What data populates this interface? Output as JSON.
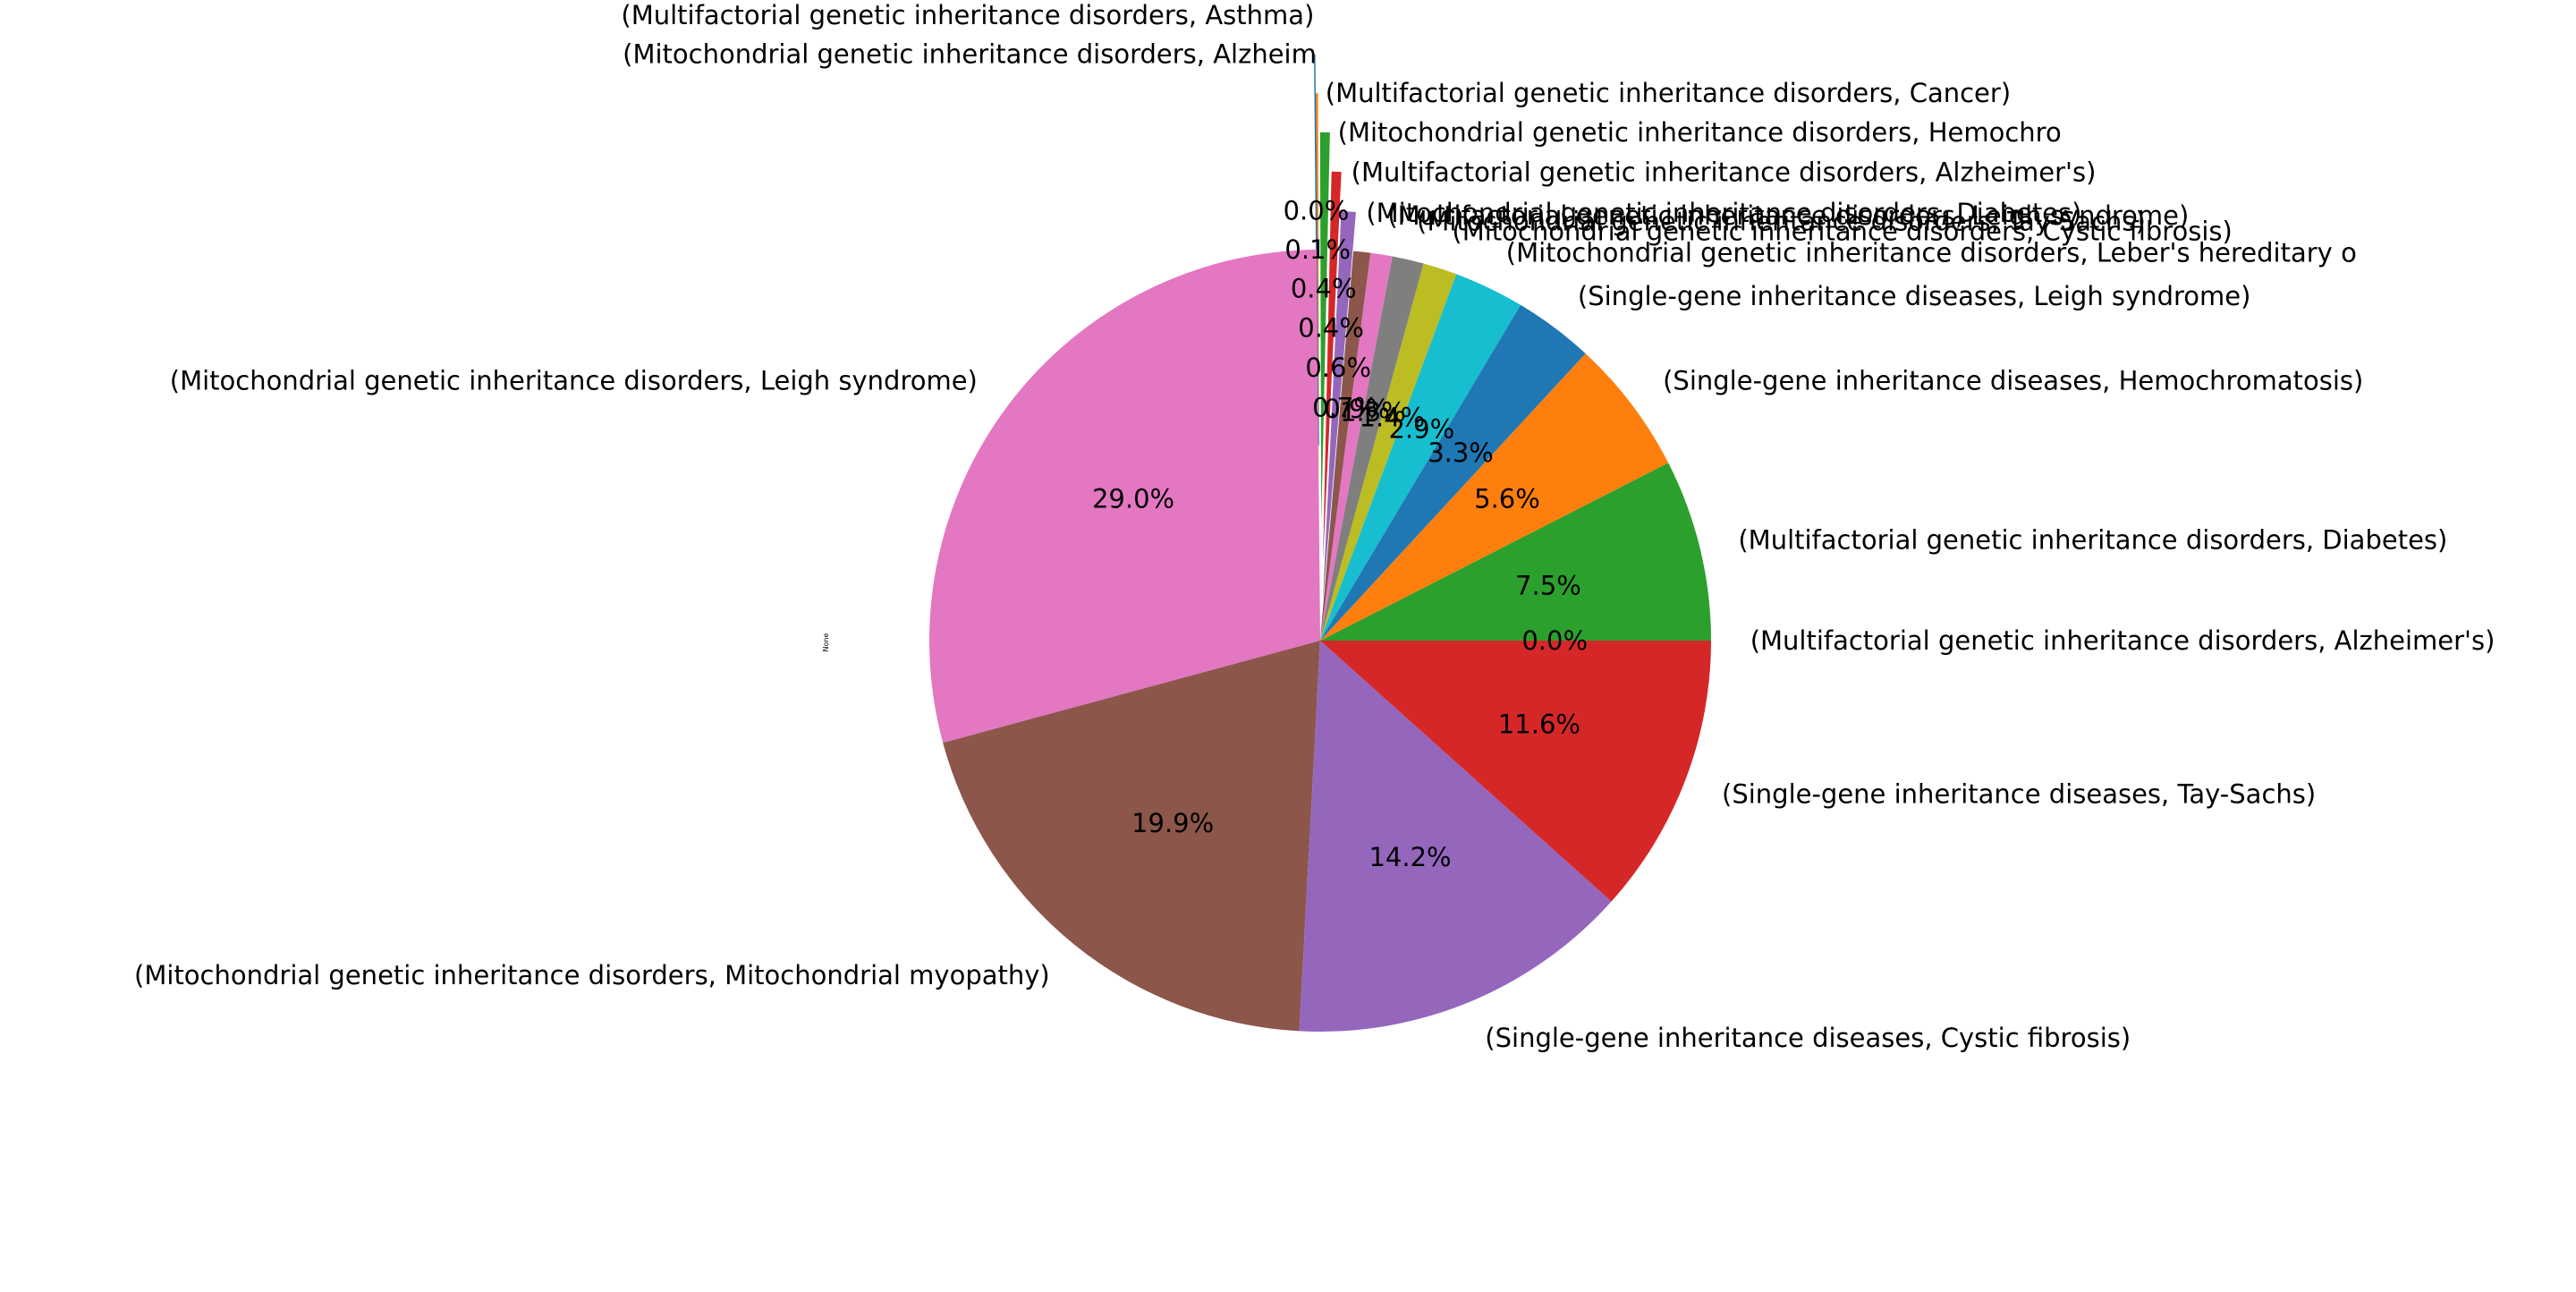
{
  "chart_data": {
    "type": "pie",
    "ylabel": "None",
    "autopct_format": "%.1f%%",
    "slices": [
      {
        "label": "(Multifactorial genetic inheritance disorders, Alzheimer's disease)",
        "label_text": "(Multifactorial genetic inheritance disorders, Alzheimer's)",
        "value": 0.0,
        "pct_text": "0.0%",
        "color": "#7f7f7f",
        "explode": 0.0
      },
      {
        "label": "(Multifactorial genetic inheritance disorders, Diabetes)",
        "value": 7.5,
        "pct_text": "7.5%",
        "color": "#2ca02c",
        "explode": 0.0
      },
      {
        "label": "(Single-gene inheritance diseases, Hemochromatosis)",
        "value": 5.6,
        "pct_text": "5.6%",
        "color": "#ff7f0e",
        "explode": 0.0
      },
      {
        "label": "(Single-gene inheritance diseases, Leigh syndrome)",
        "value": 3.3,
        "pct_text": "3.3%",
        "color": "#1f77b4",
        "explode": 0.0
      },
      {
        "label": "(Mitochondrial genetic inheritance disorders, Leber's hereditary optic neuropathy)",
        "label_text": "(Mitochondrial genetic inheritance disorders, Leber's hereditary o",
        "value": 2.9,
        "pct_text": "2.9%",
        "color": "#17becf",
        "explode": 0.0
      },
      {
        "label": "(Mitochondrial genetic inheritance disorders, Cystic fibrosis)",
        "value": 1.4,
        "pct_text": "1.4%",
        "color": "#bcbd22",
        "explode": 0.0
      },
      {
        "label": "(Mitochondrial genetic inheritance disorders, Tay-Sachs)",
        "value": 1.3,
        "pct_text": "1.3%",
        "color": "#7f7f7f",
        "explode": 0.0
      },
      {
        "label": "(Multifactorial genetic inheritance disorders, Leigh syndrome)",
        "value": 0.9,
        "pct_text": "0.9%",
        "color": "#e377c2",
        "explode": 0.0
      },
      {
        "label": "(Mitochondrial genetic inheritance disorders, Diabetes)",
        "value": 0.7,
        "pct_text": "0.7%",
        "color": "#8c564b",
        "explode": 0.0
      },
      {
        "label": "(Multifactorial genetic inheritance disorders, Alzheimer's)",
        "value": 0.6,
        "pct_text": "0.6%",
        "color": "#9467bd",
        "explode": 0.1
      },
      {
        "label": "(Mitochondrial genetic inheritance disorders, Hemochromatosis)",
        "label_text": "(Mitochondrial genetic inheritance disorders, Hemochro",
        "value": 0.4,
        "pct_text": "0.4%",
        "color": "#d62728",
        "explode": 0.2
      },
      {
        "label": "(Multifactorial genetic inheritance disorders, Cancer)",
        "label_text": "(Multifactorial genetic inheritance disorders, Cancer)",
        "value": 0.4,
        "pct_text": "0.4%",
        "color": "#2ca02c",
        "explode": 0.3
      },
      {
        "label": "(Mitochondrial genetic inheritance disorders, Alzheimer's)",
        "label_text": "(Mitochondrial genetic inheritance disorders, Alzheim",
        "value": 0.1,
        "pct_text": "0.1%",
        "color": "#ff7f0e",
        "explode": 0.4
      },
      {
        "label": "(Multifactorial genetic inheritance disorders, Asthma)",
        "label_text": "(Multifactorial genetic inheritance disorders, Asthma)",
        "value": 0.0,
        "pct_text": "0.0%",
        "color": "#1f77b4",
        "explode": 0.5
      },
      {
        "label": "(Mitochondrial genetic inheritance disorders, Leigh syndrome)",
        "value": 29.0,
        "pct_text": "29.0%",
        "color": "#e377c2",
        "explode": 0.0
      },
      {
        "label": "(Mitochondrial genetic inheritance disorders, Mitochondrial myopathy)",
        "value": 19.9,
        "pct_text": "19.9%",
        "color": "#8c564b",
        "explode": 0.0
      },
      {
        "label": "(Single-gene inheritance diseases, Cystic fibrosis)",
        "value": 14.2,
        "pct_text": "14.2%",
        "color": "#9467bd",
        "explode": 0.0
      },
      {
        "label": "(Single-gene inheritance diseases, Tay-Sachs)",
        "value": 11.6,
        "pct_text": "11.6%",
        "color": "#d62728",
        "explode": 0.0
      }
    ]
  }
}
